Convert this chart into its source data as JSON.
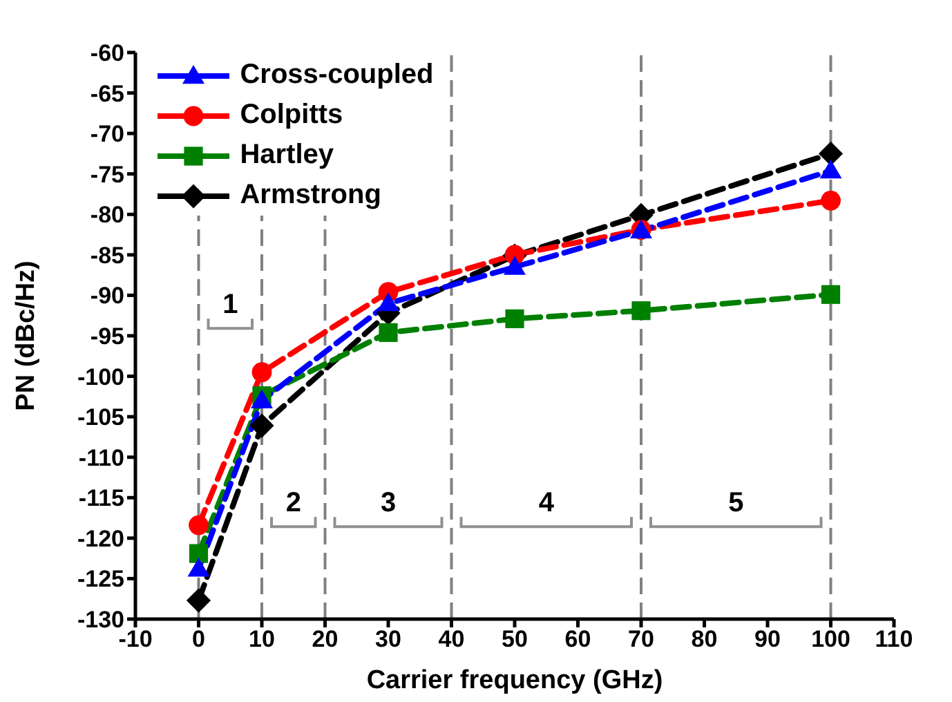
{
  "chart_data": {
    "type": "line",
    "xlabel": "Carrier frequency (GHz)",
    "ylabel": "PN (dBc/Hz)",
    "x": [
      0,
      10,
      30,
      50,
      70,
      100
    ],
    "series": [
      {
        "name": "Cross-coupled",
        "color": "#0000ff",
        "marker": "triangle",
        "values": [
          -123.8,
          -103,
          -91,
          -86.5,
          -82,
          -74.6
        ]
      },
      {
        "name": "Colpitts",
        "color": "#ff0000",
        "marker": "circle",
        "values": [
          -118.4,
          -99.5,
          -89.6,
          -85,
          -81.9,
          -78.3
        ]
      },
      {
        "name": "Hartley",
        "color": "#008000",
        "marker": "square",
        "values": [
          -121.9,
          -102.4,
          -94.6,
          -92.9,
          -91.9,
          -89.9
        ]
      },
      {
        "name": "Armstrong",
        "color": "#000000",
        "marker": "diamond",
        "values": [
          -127.7,
          -106.1,
          -92.2,
          -85.1,
          -80.1,
          -72.5
        ]
      }
    ],
    "line_style": "dashed",
    "legend": "top left",
    "grid": false,
    "xlim": [
      -10,
      110
    ],
    "xticks": [
      -10,
      0,
      10,
      20,
      30,
      40,
      50,
      60,
      70,
      80,
      90,
      100,
      110
    ],
    "ylim": [
      -130,
      -60
    ],
    "yticks": [
      -130,
      -125,
      -120,
      -115,
      -110,
      -105,
      -100,
      -95,
      -90,
      -85,
      -80,
      -75,
      -70,
      -65,
      -60
    ],
    "ref_lines": [
      {
        "axis": "x",
        "value": 0,
        "color": "#808080",
        "line_style": "dashed"
      },
      {
        "axis": "x",
        "value": 10,
        "color": "#808080",
        "line_style": "dashed"
      },
      {
        "axis": "x",
        "value": 20,
        "color": "#808080",
        "line_style": "dashed"
      },
      {
        "axis": "x",
        "value": 40,
        "color": "#808080",
        "line_style": "dashed"
      },
      {
        "axis": "x",
        "value": 70,
        "color": "#808080",
        "line_style": "dashed"
      },
      {
        "axis": "x",
        "value": 100,
        "color": "#808080",
        "line_style": "dashed"
      }
    ],
    "annotations": [
      "1",
      "2",
      "3",
      "4",
      "5"
    ]
  }
}
